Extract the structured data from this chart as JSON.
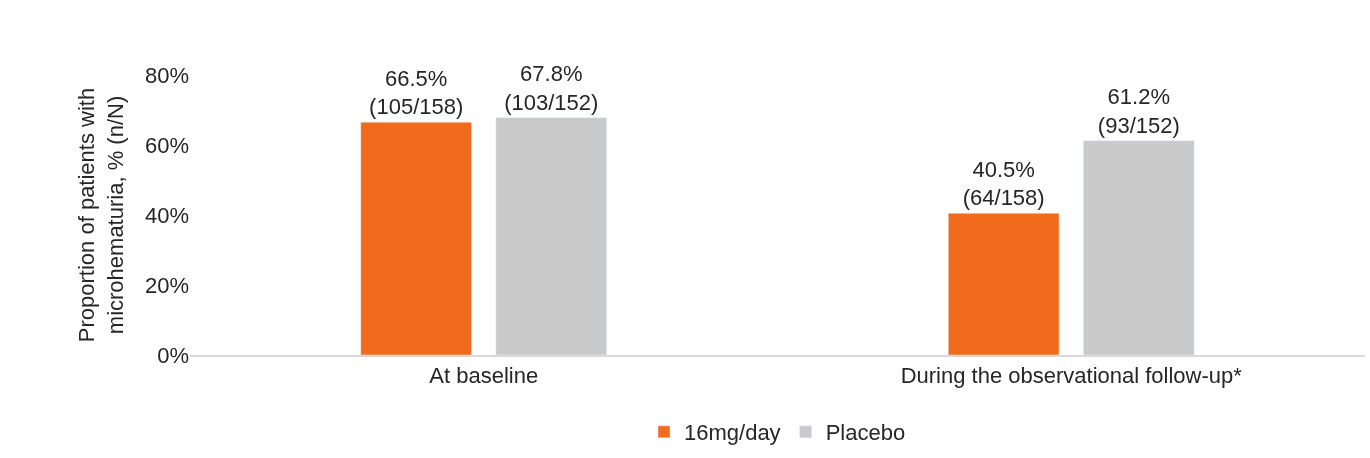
{
  "chart_data": {
    "type": "bar",
    "ylabel": "Proportion of patients with\nmicrohematuria, % (n/N)",
    "categories": [
      "At baseline",
      "During the observational follow-up*"
    ],
    "series": [
      {
        "name": "16mg/day",
        "color": "#f26b1d",
        "values": [
          66.5,
          40.5
        ],
        "value_labels": [
          "66.5%\n(105/158)",
          "40.5%\n(64/158)"
        ]
      },
      {
        "name": "Placebo",
        "color": "#c9c9c9",
        "values": [
          67.8,
          61.2
        ],
        "value_labels": [
          "67.8%\n(103/152)",
          "61.2%\n(93/152)"
        ]
      }
    ],
    "ylim": [
      0,
      80
    ],
    "yticks": [
      {
        "value": 0,
        "label": "0%"
      },
      {
        "value": 20,
        "label": "20%"
      },
      {
        "value": 40,
        "label": "40%"
      },
      {
        "value": 60,
        "label": "60%"
      },
      {
        "value": 80,
        "label": "80%"
      }
    ],
    "grid": false,
    "legend": "bottom"
  }
}
